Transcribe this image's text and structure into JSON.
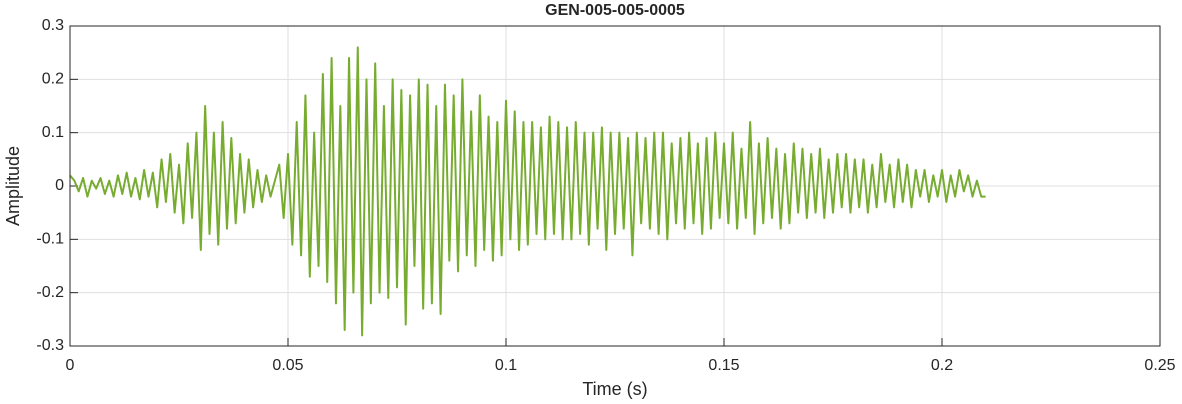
{
  "chart_data": {
    "type": "line",
    "title": "GEN-005-005-0005",
    "xlabel": "Time (s)",
    "ylabel": "Amplitude",
    "xlim": [
      0,
      0.25
    ],
    "xticks": [
      0,
      0.05,
      0.1,
      0.15,
      0.2,
      0.25
    ],
    "ylim": [
      -0.3,
      0.3
    ],
    "yticks": [
      -0.3,
      -0.2,
      -0.1,
      0,
      0.1,
      0.2,
      0.3
    ],
    "grid": true,
    "x": [
      0,
      0.001,
      0.002,
      0.003,
      0.004,
      0.005,
      0.006,
      0.007,
      0.008,
      0.009,
      0.01,
      0.011,
      0.012,
      0.013,
      0.014,
      0.015,
      0.016,
      0.017,
      0.018,
      0.019,
      0.02,
      0.021,
      0.022,
      0.023,
      0.024,
      0.025,
      0.026,
      0.027,
      0.028,
      0.029,
      0.03,
      0.031,
      0.032,
      0.033,
      0.034,
      0.035,
      0.036,
      0.037,
      0.038,
      0.039,
      0.04,
      0.041,
      0.042,
      0.043,
      0.044,
      0.045,
      0.046,
      0.047,
      0.048,
      0.049,
      0.05,
      0.051,
      0.052,
      0.053,
      0.054,
      0.055,
      0.056,
      0.057,
      0.058,
      0.059,
      0.06,
      0.061,
      0.062,
      0.063,
      0.064,
      0.065,
      0.066,
      0.067,
      0.068,
      0.069,
      0.07,
      0.071,
      0.072,
      0.073,
      0.074,
      0.075,
      0.076,
      0.077,
      0.078,
      0.079,
      0.08,
      0.081,
      0.082,
      0.083,
      0.084,
      0.085,
      0.086,
      0.087,
      0.088,
      0.089,
      0.09,
      0.091,
      0.092,
      0.093,
      0.094,
      0.095,
      0.096,
      0.097,
      0.098,
      0.099,
      0.1,
      0.101,
      0.102,
      0.103,
      0.104,
      0.105,
      0.106,
      0.107,
      0.108,
      0.109,
      0.11,
      0.111,
      0.112,
      0.113,
      0.114,
      0.115,
      0.116,
      0.117,
      0.118,
      0.119,
      0.12,
      0.121,
      0.122,
      0.123,
      0.124,
      0.125,
      0.126,
      0.127,
      0.128,
      0.129,
      0.13,
      0.131,
      0.132,
      0.133,
      0.134,
      0.135,
      0.136,
      0.137,
      0.138,
      0.139,
      0.14,
      0.141,
      0.142,
      0.143,
      0.144,
      0.145,
      0.146,
      0.147,
      0.148,
      0.149,
      0.15,
      0.151,
      0.152,
      0.153,
      0.154,
      0.155,
      0.156,
      0.157,
      0.158,
      0.159,
      0.16,
      0.161,
      0.162,
      0.163,
      0.164,
      0.165,
      0.166,
      0.167,
      0.168,
      0.169,
      0.17,
      0.171,
      0.172,
      0.173,
      0.174,
      0.175,
      0.176,
      0.177,
      0.178,
      0.179,
      0.18,
      0.181,
      0.182,
      0.183,
      0.184,
      0.185,
      0.186,
      0.187,
      0.188,
      0.189,
      0.19,
      0.191,
      0.192,
      0.193,
      0.194,
      0.195,
      0.196,
      0.197,
      0.198,
      0.199,
      0.2,
      0.201,
      0.202,
      0.203,
      0.204,
      0.205,
      0.206,
      0.207,
      0.208,
      0.209,
      0.21
    ],
    "series": [
      {
        "color": "#77ac30",
        "values": [
          0.02,
          0.01,
          -0.01,
          0.015,
          -0.02,
          0.01,
          -0.005,
          0.015,
          -0.015,
          0.01,
          -0.02,
          0.02,
          -0.015,
          0.025,
          -0.02,
          0.015,
          -0.025,
          0.03,
          -0.02,
          0.025,
          -0.04,
          0.05,
          -0.03,
          0.06,
          -0.05,
          0.04,
          -0.07,
          0.08,
          -0.06,
          0.1,
          -0.12,
          0.15,
          -0.09,
          0.1,
          -0.11,
          0.12,
          -0.08,
          0.09,
          -0.07,
          0.06,
          -0.05,
          0.05,
          -0.04,
          0.03,
          -0.03,
          0.02,
          -0.02,
          0.01,
          0.04,
          -0.06,
          0.06,
          -0.11,
          0.12,
          -0.13,
          0.17,
          -0.17,
          0.1,
          -0.15,
          0.21,
          -0.18,
          0.24,
          -0.22,
          0.15,
          -0.27,
          0.24,
          -0.2,
          0.26,
          -0.28,
          0.2,
          -0.22,
          0.23,
          -0.2,
          0.15,
          -0.21,
          0.2,
          -0.19,
          0.18,
          -0.26,
          0.17,
          -0.15,
          0.2,
          -0.23,
          0.19,
          -0.22,
          0.15,
          -0.24,
          0.19,
          -0.14,
          0.17,
          -0.16,
          0.2,
          -0.13,
          0.14,
          -0.15,
          0.17,
          -0.12,
          0.13,
          -0.14,
          0.12,
          -0.13,
          0.16,
          -0.1,
          0.14,
          -0.12,
          0.12,
          -0.11,
          0.12,
          -0.09,
          0.11,
          -0.1,
          0.13,
          -0.09,
          0.12,
          -0.1,
          0.11,
          -0.1,
          0.12,
          -0.09,
          0.1,
          -0.11,
          0.1,
          -0.08,
          0.11,
          -0.12,
          0.1,
          -0.09,
          0.1,
          -0.08,
          0.09,
          -0.13,
          0.1,
          -0.07,
          0.09,
          -0.08,
          0.1,
          -0.09,
          0.1,
          -0.1,
          0.08,
          -0.07,
          0.09,
          -0.08,
          0.1,
          -0.07,
          0.08,
          -0.09,
          0.09,
          -0.08,
          0.1,
          -0.06,
          0.08,
          -0.07,
          0.1,
          -0.08,
          0.07,
          -0.06,
          0.12,
          -0.09,
          0.08,
          -0.07,
          0.09,
          -0.06,
          0.07,
          -0.08,
          0.06,
          -0.07,
          0.08,
          -0.05,
          0.07,
          -0.06,
          0.06,
          -0.05,
          0.07,
          -0.06,
          0.05,
          -0.05,
          0.06,
          -0.04,
          0.06,
          -0.05,
          0.05,
          -0.04,
          0.05,
          -0.05,
          0.04,
          -0.04,
          0.06,
          -0.03,
          0.04,
          -0.04,
          0.05,
          -0.03,
          0.04,
          -0.04,
          0.03,
          -0.02,
          0.03,
          -0.03,
          0.02,
          -0.02,
          0.03,
          -0.03,
          0.02,
          -0.02,
          0.03,
          -0.01,
          0.02,
          -0.02,
          0.01,
          -0.02,
          -0.02
        ]
      }
    ]
  }
}
